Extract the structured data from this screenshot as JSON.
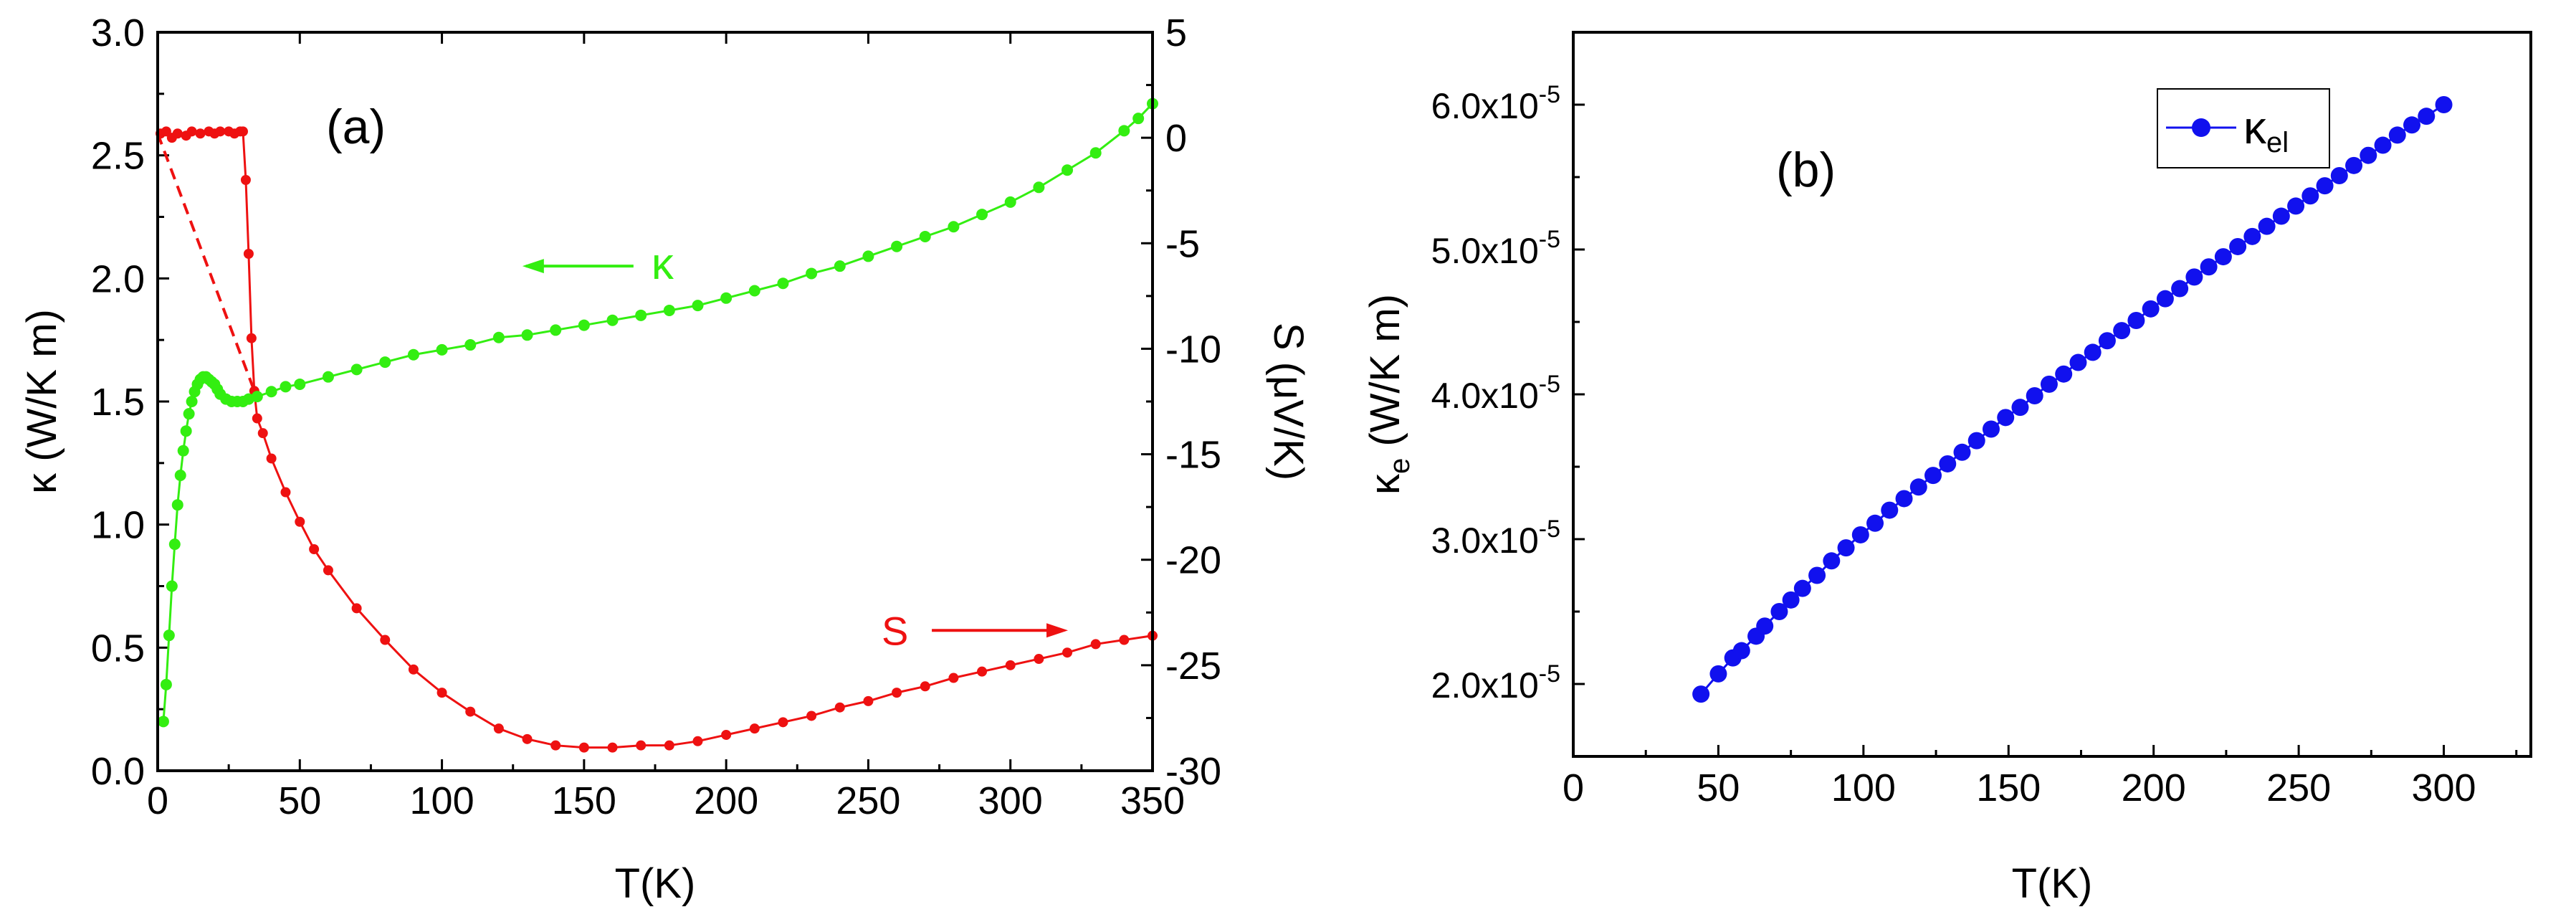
{
  "chart_data": [
    {
      "type": "scatter",
      "panel_label": "(a)",
      "xlabel": "T(K)",
      "ylabel": "κ (W/K m)",
      "y2label": "S (μV/K)",
      "xlim": [
        0,
        350
      ],
      "ylim": [
        0,
        3.0
      ],
      "y2lim": [
        -30,
        5
      ],
      "xticks": [
        "0",
        "50",
        "100",
        "150",
        "200",
        "250",
        "300",
        "350"
      ],
      "xtick_values": [
        0,
        50,
        100,
        150,
        200,
        250,
        300,
        350
      ],
      "yticks": [
        "0.0",
        "0.5",
        "1.0",
        "1.5",
        "2.0",
        "2.5",
        "3.0"
      ],
      "ytick_values": [
        0,
        0.5,
        1.0,
        1.5,
        2.0,
        2.5,
        3.0
      ],
      "y2ticks": [
        "5",
        "0",
        "-5",
        "-10",
        "-15",
        "-20",
        "-25",
        "-30"
      ],
      "y2tick_values": [
        5,
        0,
        -5,
        -10,
        -15,
        -20,
        -25,
        -30
      ],
      "annotations": [
        {
          "text": "κ",
          "color": "#33ee11",
          "arrow": "left",
          "x": 180,
          "y": 2.05
        },
        {
          "text": "S",
          "color": "#ee1111",
          "arrow": "right",
          "x": 290,
          "y": 0.57
        }
      ],
      "series": [
        {
          "name": "κ",
          "axis": "left",
          "color": "#33ee11",
          "x": [
            2,
            3,
            4,
            5,
            6,
            7,
            8,
            9,
            10,
            11,
            12,
            13,
            14,
            15,
            16,
            17,
            18,
            19,
            20,
            21,
            22,
            24,
            26,
            28,
            30,
            32,
            35,
            40,
            45,
            50,
            60,
            70,
            80,
            90,
            100,
            110,
            120,
            130,
            140,
            150,
            160,
            170,
            180,
            190,
            200,
            210,
            220,
            230,
            240,
            250,
            260,
            270,
            280,
            290,
            300,
            310,
            320,
            330,
            340,
            345,
            350
          ],
          "y": [
            0.2,
            0.35,
            0.55,
            0.75,
            0.92,
            1.08,
            1.2,
            1.3,
            1.38,
            1.45,
            1.5,
            1.54,
            1.57,
            1.59,
            1.6,
            1.6,
            1.59,
            1.58,
            1.57,
            1.55,
            1.53,
            1.51,
            1.5,
            1.5,
            1.5,
            1.51,
            1.52,
            1.54,
            1.56,
            1.57,
            1.6,
            1.63,
            1.66,
            1.69,
            1.71,
            1.73,
            1.76,
            1.77,
            1.79,
            1.81,
            1.83,
            1.85,
            1.87,
            1.89,
            1.92,
            1.95,
            1.98,
            2.02,
            2.05,
            2.09,
            2.13,
            2.17,
            2.21,
            2.26,
            2.31,
            2.37,
            2.44,
            2.51,
            2.6,
            2.65,
            2.71
          ]
        },
        {
          "name": "S",
          "axis": "right",
          "color": "#ee1111",
          "x": [
            1,
            3,
            5,
            7,
            10,
            12,
            15,
            18,
            20,
            22,
            25,
            27,
            29,
            30,
            31,
            32,
            33,
            34,
            35,
            37,
            40,
            45,
            50,
            55,
            60,
            70,
            80,
            90,
            100,
            110,
            120,
            130,
            140,
            150,
            160,
            170,
            180,
            190,
            200,
            210,
            220,
            230,
            240,
            250,
            260,
            270,
            280,
            290,
            300,
            310,
            320,
            330,
            340,
            350
          ],
          "y": [
            0.2,
            0.3,
            0.0,
            0.2,
            0.1,
            0.3,
            0.2,
            0.3,
            0.2,
            0.3,
            0.3,
            0.2,
            0.3,
            0.3,
            -2.0,
            -5.5,
            -9.5,
            -12.0,
            -13.3,
            -14.0,
            -15.2,
            -16.8,
            -18.2,
            -19.5,
            -20.5,
            -22.3,
            -23.8,
            -25.2,
            -26.3,
            -27.2,
            -28.0,
            -28.5,
            -28.8,
            -28.9,
            -28.9,
            -28.8,
            -28.8,
            -28.6,
            -28.3,
            -28.0,
            -27.7,
            -27.4,
            -27.0,
            -26.7,
            -26.3,
            -26.0,
            -25.6,
            -25.3,
            -25.0,
            -24.7,
            -24.4,
            -24.0,
            -23.8,
            -23.6
          ]
        },
        {
          "name": "S extrapolation (dashed)",
          "axis": "right",
          "color": "#ee1111",
          "dashed": true,
          "x": [
            0,
            34
          ],
          "y": [
            0.2,
            -12.0
          ]
        }
      ]
    },
    {
      "type": "scatter",
      "panel_label": "(b)",
      "xlabel": "T(K)",
      "ylabel_main": "κ",
      "ylabel_sub": "e",
      "ylabel_rest": " (W/K m)",
      "xlim": [
        0,
        330
      ],
      "ylim": [
        1.5e-05,
        6.5e-05
      ],
      "xticks": [
        "0",
        "50",
        "100",
        "150",
        "200",
        "250",
        "300"
      ],
      "xtick_values": [
        0,
        50,
        100,
        150,
        200,
        250,
        300
      ],
      "ytick_labels": [
        {
          "mantissa": "2.0x10",
          "exp": "-5"
        },
        {
          "mantissa": "3.0x10",
          "exp": "-5"
        },
        {
          "mantissa": "4.0x10",
          "exp": "-5"
        },
        {
          "mantissa": "5.0x10",
          "exp": "-5"
        },
        {
          "mantissa": "6.0x10",
          "exp": "-5"
        }
      ],
      "ytick_values": [
        2e-05,
        3e-05,
        4e-05,
        5e-05,
        6e-05
      ],
      "legend": {
        "symbol": "κ",
        "sub": "el",
        "placement": "top-right"
      },
      "series": [
        {
          "name": "κel",
          "color": "#1111ee",
          "x": [
            44,
            50,
            55,
            58,
            63,
            66,
            71,
            75,
            79,
            84,
            89,
            94,
            99,
            104,
            109,
            114,
            119,
            124,
            129,
            134,
            139,
            144,
            149,
            154,
            159,
            164,
            169,
            174,
            179,
            184,
            189,
            194,
            199,
            204,
            209,
            214,
            219,
            224,
            229,
            234,
            239,
            244,
            249,
            254,
            259,
            264,
            269,
            274,
            279,
            284,
            289,
            294,
            300
          ],
          "y": [
            1.93e-05,
            2.07e-05,
            2.18e-05,
            2.23e-05,
            2.33e-05,
            2.4e-05,
            2.5e-05,
            2.58e-05,
            2.66e-05,
            2.75e-05,
            2.85e-05,
            2.94e-05,
            3.03e-05,
            3.11e-05,
            3.2e-05,
            3.28e-05,
            3.36e-05,
            3.44e-05,
            3.52e-05,
            3.6e-05,
            3.68e-05,
            3.76e-05,
            3.84e-05,
            3.91e-05,
            3.99e-05,
            4.07e-05,
            4.14e-05,
            4.22e-05,
            4.29e-05,
            4.37e-05,
            4.44e-05,
            4.51e-05,
            4.59e-05,
            4.66e-05,
            4.73e-05,
            4.81e-05,
            4.88e-05,
            4.95e-05,
            5.02e-05,
            5.09e-05,
            5.16e-05,
            5.23e-05,
            5.3e-05,
            5.37e-05,
            5.44e-05,
            5.51e-05,
            5.58e-05,
            5.65e-05,
            5.72e-05,
            5.79e-05,
            5.86e-05,
            5.92e-05,
            6e-05
          ]
        }
      ]
    }
  ]
}
